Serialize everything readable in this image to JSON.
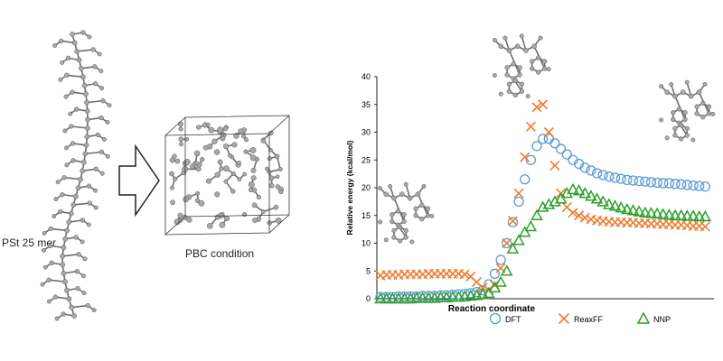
{
  "figure": {
    "polymer_label": "PSt 25 mer",
    "pbc_label": "PBC condition"
  },
  "colors": {
    "dft": "#5b9bd5",
    "reaxff": "#ed7d31",
    "nnp": "#2ca02c",
    "atom": "#a8a8a8",
    "bond": "#6e6e6e",
    "box": "#333333"
  },
  "chart_data": {
    "type": "scatter",
    "title": "",
    "xlabel": "Reaction coordinate",
    "ylabel": "Relative energy (kcal/mol)",
    "xlim": [
      0,
      55
    ],
    "ylim": [
      0,
      40
    ],
    "yticks": [
      "0",
      "5",
      "10",
      "15",
      "20",
      "25",
      "30",
      "35",
      "40"
    ],
    "legend_position": "bottom",
    "series": [
      {
        "name": "DFT",
        "marker": "circle",
        "color": "#5b9bd5",
        "x": [
          0,
          1,
          2,
          3,
          4,
          5,
          6,
          7,
          8,
          9,
          10,
          11,
          12,
          13,
          14,
          15,
          16,
          17,
          18,
          19,
          20,
          21,
          22,
          23,
          24,
          25,
          26,
          27,
          28,
          29,
          30,
          31,
          32,
          33,
          34,
          35,
          36,
          37,
          38,
          39,
          40,
          41,
          42,
          43,
          44,
          45,
          46,
          47,
          48,
          49,
          50,
          51,
          52,
          53,
          54
        ],
        "values": [
          0.3,
          0.3,
          0.3,
          0.4,
          0.4,
          0.4,
          0.4,
          0.5,
          0.5,
          0.5,
          0.6,
          0.6,
          0.7,
          0.8,
          0.9,
          1.0,
          1.2,
          1.5,
          2.6,
          4.5,
          7.0,
          10.0,
          13.8,
          17.5,
          21.5,
          25.0,
          27.5,
          28.8,
          28.8,
          28.0,
          27.0,
          26.0,
          25.0,
          24.3,
          23.6,
          23.1,
          22.6,
          22.3,
          22.0,
          21.8,
          21.6,
          21.4,
          21.3,
          21.2,
          21.1,
          21.0,
          20.9,
          20.8,
          20.8,
          20.7,
          20.6,
          20.5,
          20.4,
          20.3,
          20.2
        ]
      },
      {
        "name": "ReaxFF",
        "marker": "x",
        "color": "#ed7d31",
        "x": [
          0,
          1,
          2,
          3,
          4,
          5,
          6,
          7,
          8,
          9,
          10,
          11,
          12,
          13,
          14,
          15,
          16,
          17,
          18,
          19,
          20,
          21,
          22,
          23,
          24,
          25,
          26,
          27,
          28,
          29,
          30,
          31,
          32,
          33,
          34,
          35,
          36,
          37,
          38,
          39,
          40,
          41,
          42,
          43,
          44,
          45,
          46,
          47,
          48,
          49,
          50,
          51,
          52,
          53,
          54
        ],
        "values": [
          4.2,
          4.3,
          4.3,
          4.3,
          4.4,
          4.4,
          4.4,
          4.4,
          4.5,
          4.5,
          4.5,
          4.5,
          4.5,
          4.5,
          4.4,
          4.0,
          3.0,
          2.0,
          1.6,
          2.5,
          5.5,
          10.0,
          14.0,
          19.0,
          25.5,
          31.0,
          34.5,
          35.0,
          30.0,
          24.0,
          19.0,
          16.5,
          15.5,
          15.0,
          14.6,
          14.3,
          14.1,
          14.0,
          13.9,
          13.8,
          13.8,
          13.7,
          13.7,
          13.6,
          13.6,
          13.5,
          13.5,
          13.4,
          13.4,
          13.3,
          13.3,
          13.2,
          13.1,
          13.1,
          13.0
        ]
      },
      {
        "name": "NNP",
        "marker": "triangle",
        "color": "#2ca02c",
        "x": [
          0,
          1,
          2,
          3,
          4,
          5,
          6,
          7,
          8,
          9,
          10,
          11,
          12,
          13,
          14,
          15,
          16,
          17,
          18,
          19,
          20,
          21,
          22,
          23,
          24,
          25,
          26,
          27,
          28,
          29,
          30,
          31,
          32,
          33,
          34,
          35,
          36,
          37,
          38,
          39,
          40,
          41,
          42,
          43,
          44,
          45,
          46,
          47,
          48,
          49,
          50,
          51,
          52,
          53,
          54
        ],
        "values": [
          0.0,
          0.0,
          0.0,
          0.0,
          0.0,
          0.0,
          0.1,
          0.1,
          0.1,
          0.1,
          0.2,
          0.2,
          0.3,
          0.3,
          0.4,
          0.5,
          0.6,
          0.8,
          1.0,
          2.0,
          3.0,
          5.0,
          9.0,
          10.5,
          12.0,
          13.0,
          15.0,
          16.5,
          17.0,
          17.5,
          18.0,
          19.0,
          19.7,
          19.5,
          19.0,
          18.5,
          18.0,
          17.5,
          17.0,
          16.7,
          16.4,
          16.1,
          15.9,
          15.7,
          15.5,
          15.4,
          15.3,
          15.2,
          15.1,
          15.0,
          15.0,
          14.9,
          14.9,
          14.8,
          14.8
        ]
      }
    ]
  }
}
